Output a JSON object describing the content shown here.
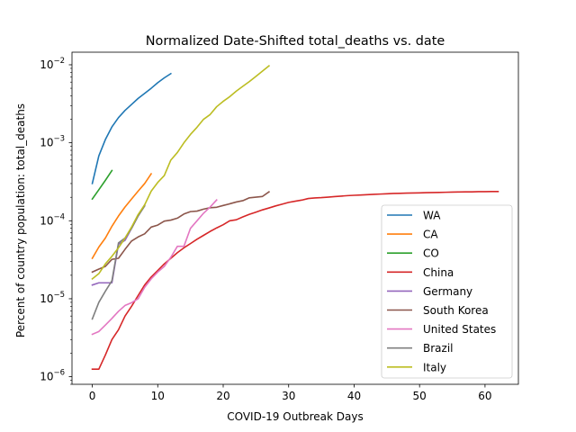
{
  "chart_data": {
    "type": "line",
    "title": "Normalized Date-Shifted total_deaths vs. date",
    "xlabel": "COVID-19 Outbreak Days",
    "ylabel": "Percent of country population: total_deaths",
    "y_scale": "log",
    "xlim": [
      -3.1,
      65.1
    ],
    "ylim": [
      8e-07,
      0.0145
    ],
    "x_ticks": [
      0,
      10,
      20,
      30,
      40,
      50,
      60
    ],
    "x_tick_labels": [
      "0",
      "10",
      "20",
      "30",
      "40",
      "50",
      "60"
    ],
    "y_ticks": [
      {
        "value": 1e-06,
        "base": "10",
        "exp": "−6"
      },
      {
        "value": 1e-05,
        "base": "10",
        "exp": "−5"
      },
      {
        "value": 0.0001,
        "base": "10",
        "exp": "−4"
      },
      {
        "value": 0.001,
        "base": "10",
        "exp": "−3"
      },
      {
        "value": 0.01,
        "base": "10",
        "exp": "−2"
      }
    ],
    "grid": false,
    "legend_position": "lower right",
    "series": [
      {
        "name": "WA",
        "color": "#1f77b4",
        "x": [
          0,
          1,
          2,
          3,
          4,
          5,
          6,
          7,
          8,
          9,
          10,
          11,
          12
        ],
        "y": [
          0.0003,
          0.00068,
          0.0011,
          0.0016,
          0.0021,
          0.0026,
          0.0031,
          0.0037,
          0.0043,
          0.005,
          0.0059,
          0.0068,
          0.0077
        ]
      },
      {
        "name": "CA",
        "color": "#ff7f0e",
        "x": [
          0,
          1,
          2,
          3,
          4,
          5,
          6,
          7,
          8,
          9
        ],
        "y": [
          3.3e-05,
          4.6e-05,
          6e-05,
          8.5e-05,
          0.000115,
          0.00015,
          0.00019,
          0.00024,
          0.0003,
          0.0004
        ]
      },
      {
        "name": "CO",
        "color": "#2ca02c",
        "x": [
          0,
          1,
          2,
          3
        ],
        "y": [
          0.00019,
          0.00025,
          0.00033,
          0.00044
        ]
      },
      {
        "name": "China",
        "color": "#d62728",
        "x": [
          0,
          1,
          2,
          3,
          4,
          5,
          6,
          7,
          8,
          9,
          10,
          11,
          12,
          13,
          14,
          15,
          16,
          17,
          18,
          19,
          20,
          21,
          22,
          23,
          24,
          25,
          26,
          27,
          28,
          29,
          30,
          31,
          32,
          33,
          34,
          35,
          36,
          37,
          38,
          39,
          40,
          41,
          42,
          43,
          44,
          45,
          46,
          47,
          48,
          49,
          50,
          51,
          52,
          53,
          54,
          55,
          56,
          57,
          58,
          59,
          60,
          61,
          62
        ],
        "y": [
          1.25e-06,
          1.25e-06,
          1.9e-06,
          3e-06,
          4e-06,
          6e-06,
          8e-06,
          1.1e-05,
          1.5e-05,
          1.9e-05,
          2.3e-05,
          2.8e-05,
          3.3e-05,
          3.9e-05,
          4.5e-05,
          5.1e-05,
          5.8e-05,
          6.5e-05,
          7.3e-05,
          8.1e-05,
          8.9e-05,
          0.0001,
          0.000103,
          0.000112,
          0.000121,
          0.000129,
          0.000138,
          0.000146,
          0.000155,
          0.000163,
          0.000172,
          0.000178,
          0.000184,
          0.000193,
          0.000196,
          0.000198,
          0.000201,
          0.000204,
          0.000207,
          0.00021,
          0.000212,
          0.000214,
          0.000216,
          0.000218,
          0.00022,
          0.000222,
          0.000224,
          0.000225,
          0.000226,
          0.000227,
          0.000228,
          0.000229,
          0.00023,
          0.000231,
          0.000232,
          0.000233,
          0.000234,
          0.000235,
          0.000235,
          0.000236,
          0.000236,
          0.000237,
          0.000237
        ]
      },
      {
        "name": "Germany",
        "color": "#9467bd",
        "x": [
          0,
          1,
          2,
          3,
          4,
          5,
          6,
          7,
          8
        ],
        "y": [
          1.5e-05,
          1.6e-05,
          1.6e-05,
          1.6e-05,
          5e-05,
          5.6e-05,
          8e-05,
          0.000115,
          0.00016
        ]
      },
      {
        "name": "South Korea",
        "color": "#8c564b",
        "x": [
          0,
          1,
          2,
          3,
          4,
          5,
          6,
          7,
          8,
          9,
          10,
          11,
          12,
          13,
          14,
          15,
          16,
          17,
          18,
          19,
          20,
          21,
          22,
          23,
          24,
          25,
          26,
          27
        ],
        "y": [
          2.2e-05,
          2.4e-05,
          2.6e-05,
          3.2e-05,
          3.3e-05,
          4.3e-05,
          5.5e-05,
          6.2e-05,
          6.8e-05,
          8.3e-05,
          8.8e-05,
          9.9e-05,
          0.000102,
          0.000108,
          0.000122,
          0.000131,
          0.000133,
          0.000141,
          0.000147,
          0.000149,
          0.000157,
          0.000165,
          0.000174,
          0.000181,
          0.000197,
          0.000201,
          0.000205,
          0.000235
        ]
      },
      {
        "name": "United States",
        "color": "#e377c2",
        "x": [
          0,
          1,
          2,
          3,
          4,
          5,
          6,
          7,
          8,
          9,
          10,
          11,
          12,
          13,
          14,
          15,
          16,
          17,
          18,
          19
        ],
        "y": [
          3.5e-06,
          3.8e-06,
          4.6e-06,
          5.6e-06,
          6.9e-06,
          8.2e-06,
          8.9e-06,
          1e-05,
          1.4e-05,
          1.8e-05,
          2.2e-05,
          2.6e-05,
          3.4e-05,
          4.7e-05,
          4.7e-05,
          8e-05,
          0.0001,
          0.000125,
          0.00015,
          0.000185
        ]
      },
      {
        "name": "Brazil",
        "color": "#7f7f7f",
        "x": [
          0,
          1,
          2,
          3,
          4,
          5,
          6,
          7,
          8
        ],
        "y": [
          5.5e-06,
          9e-06,
          1.25e-05,
          1.7e-05,
          5.2e-05,
          6e-05,
          8e-05,
          0.000115,
          0.000155
        ]
      },
      {
        "name": "Italy",
        "color": "#bcbd22",
        "x": [
          0,
          1,
          2,
          3,
          4,
          5,
          6,
          7,
          8,
          9,
          10,
          11,
          12,
          13,
          14,
          15,
          16,
          17,
          18,
          19,
          20,
          21,
          22,
          23,
          24,
          25,
          26,
          27
        ],
        "y": [
          1.8e-05,
          2.1e-05,
          2.8e-05,
          3.5e-05,
          4.5e-05,
          6e-05,
          8.3e-05,
          0.00012,
          0.00016,
          0.00024,
          0.00031,
          0.00038,
          0.0006,
          0.00075,
          0.001,
          0.00128,
          0.00158,
          0.002,
          0.0023,
          0.0029,
          0.0034,
          0.0039,
          0.0046,
          0.0053,
          0.0061,
          0.0071,
          0.0083,
          0.0097
        ]
      }
    ]
  }
}
